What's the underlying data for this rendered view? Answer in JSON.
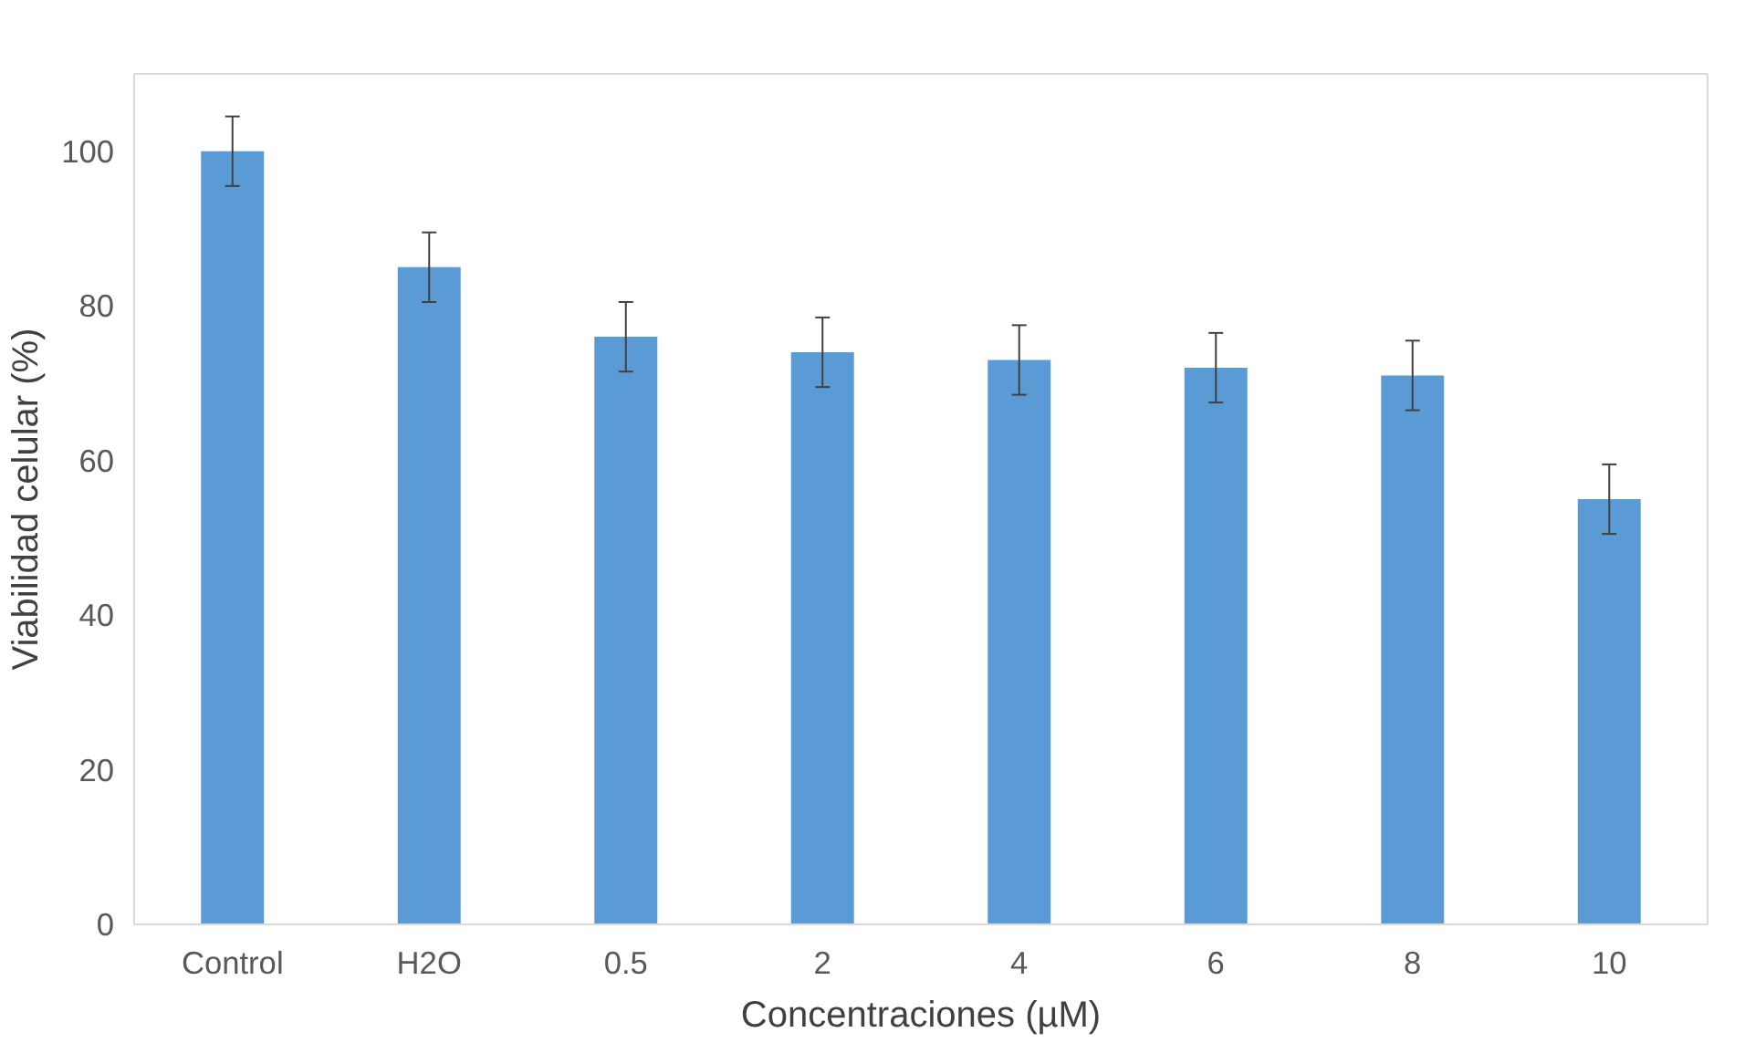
{
  "chart_data": {
    "type": "bar",
    "xlabel": "Concentraciones (µM)",
    "ylabel": "Viabilidad celular (%)",
    "categories": [
      "Control",
      "H2O",
      "0.5",
      "2",
      "4",
      "6",
      "8",
      "10"
    ],
    "values": [
      100,
      85,
      76,
      74,
      73,
      72,
      71,
      55
    ],
    "errors": [
      4.5,
      4.5,
      4.5,
      4.5,
      4.5,
      4.5,
      4.5,
      4.5
    ],
    "color": "#5b9bd5",
    "ylim": [
      0,
      110
    ],
    "yticks": [
      0,
      20,
      40,
      60,
      80,
      100
    ],
    "grid": false
  }
}
